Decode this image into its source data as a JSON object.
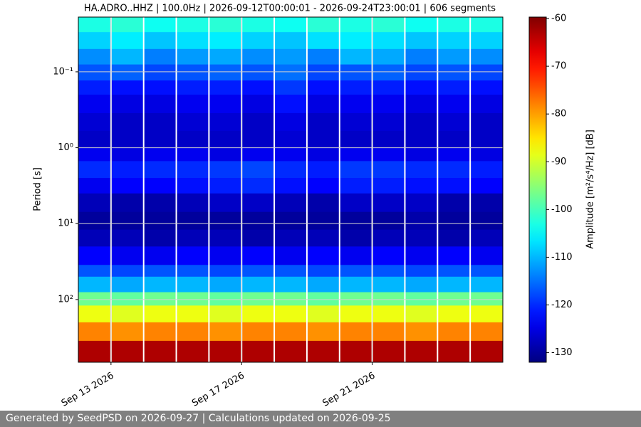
{
  "chart_data": {
    "type": "spectrogram",
    "title": "HA.ADRO..HHZ | 100.0Hz | 2026-09-12T00:00:01 - 2026-09-24T23:00:01 | 606 segments",
    "y_label": "Period [s]",
    "colorbar_label": "Amplitude [m²/s⁴/Hz] [dB]",
    "footer": "Generated by SeedPSD on 2026-09-27 | Calculations updated on 2026-09-25",
    "colormap": "jet",
    "y_log": true,
    "y_inverted": true,
    "grid": true,
    "xlim": [
      "2026-09-12",
      "2026-09-25"
    ],
    "xticks": [
      {
        "value": "2026-09-13",
        "label": "Sep 13 2026"
      },
      {
        "value": "2026-09-17",
        "label": "Sep 17 2026"
      },
      {
        "value": "2026-09-21",
        "label": "Sep 21 2026"
      }
    ],
    "ylim": [
      0.019,
      670
    ],
    "yticks": [
      {
        "value": 0.1,
        "label": "10⁻¹"
      },
      {
        "value": 1,
        "label": "10⁰"
      },
      {
        "value": 10,
        "label": "10¹"
      },
      {
        "value": 100,
        "label": "10²"
      }
    ],
    "zlim": [
      -132,
      -59.7
    ],
    "zticks": [
      -60,
      -70,
      -80,
      -90,
      -100,
      -110,
      -120,
      -130
    ],
    "x": [
      "2026-09-12",
      "2026-09-13",
      "2026-09-14",
      "2026-09-15",
      "2026-09-16",
      "2026-09-17",
      "2026-09-18",
      "2026-09-19",
      "2026-09-20",
      "2026-09-21",
      "2026-09-22",
      "2026-09-23",
      "2026-09-24"
    ],
    "period_bins": [
      0.019,
      0.03,
      0.05,
      0.08,
      0.13,
      0.2,
      0.35,
      0.6,
      1,
      1.5,
      2.5,
      4,
      7,
      12,
      20,
      35,
      50,
      80,
      120,
      200,
      350,
      670
    ],
    "values": [
      [
        -103,
        -102,
        -104,
        -103,
        -102,
        -103,
        -104,
        -102,
        -103,
        -102,
        -104,
        -103,
        -103
      ],
      [
        -108,
        -106,
        -109,
        -107,
        -106,
        -108,
        -109,
        -107,
        -106,
        -107,
        -109,
        -108,
        -108
      ],
      [
        -113,
        -110,
        -114,
        -112,
        -111,
        -113,
        -112,
        -114,
        -110,
        -111,
        -114,
        -112,
        -113
      ],
      [
        -117,
        -116,
        -118,
        -117,
        -116,
        -117,
        -115,
        -118,
        -117,
        -116,
        -118,
        -117,
        -118
      ],
      [
        -121,
        -122,
        -122,
        -121,
        -121,
        -122,
        -119,
        -122,
        -121,
        -121,
        -122,
        -121,
        -122
      ],
      [
        -124,
        -125,
        -125,
        -124,
        -124,
        -125,
        -122,
        -125,
        -124,
        -124,
        -125,
        -124,
        -125
      ],
      [
        -126,
        -127,
        -127,
        -126,
        -126,
        -127,
        -125,
        -127,
        -126,
        -126,
        -127,
        -126,
        -127
      ],
      [
        -127,
        -127,
        -127,
        -127,
        -127,
        -127,
        -126,
        -127,
        -127,
        -127,
        -127,
        -127,
        -127
      ],
      [
        -124,
        -125,
        -124,
        -124,
        -125,
        -124,
        -124,
        -125,
        -124,
        -124,
        -125,
        -124,
        -125
      ],
      [
        -120,
        -121,
        -120,
        -120,
        -119,
        -118,
        -120,
        -121,
        -119,
        -119,
        -120,
        -120,
        -121
      ],
      [
        -124,
        -123,
        -123,
        -122,
        -121,
        -120,
        -122,
        -123,
        -121,
        -121,
        -122,
        -122,
        -123
      ],
      [
        -128,
        -129,
        -129,
        -128,
        -127,
        -127,
        -128,
        -129,
        -127,
        -127,
        -127,
        -129,
        -129
      ],
      [
        -130,
        -130,
        -130,
        -130,
        -130,
        -130,
        -130,
        -130,
        -130,
        -130,
        -129,
        -130,
        -130
      ],
      [
        -128,
        -128,
        -129,
        -128,
        -128,
        -129,
        -128,
        -128,
        -129,
        -128,
        -128,
        -129,
        -128
      ],
      [
        -123,
        -124,
        -124,
        -123,
        -124,
        -123,
        -124,
        -123,
        -124,
        -123,
        -124,
        -123,
        -124
      ],
      [
        -117,
        -118,
        -117,
        -117,
        -118,
        -117,
        -117,
        -118,
        -117,
        -117,
        -118,
        -117,
        -117
      ],
      [
        -110,
        -111,
        -110,
        -110,
        -111,
        -110,
        -110,
        -111,
        -110,
        -110,
        -111,
        -110,
        -110
      ],
      [
        -97,
        -98,
        -97,
        -97,
        -98,
        -97,
        -97,
        -98,
        -97,
        -97,
        -98,
        -97,
        -97
      ],
      [
        -88,
        -89,
        -88,
        -88,
        -89,
        -88,
        -88,
        -89,
        -88,
        -88,
        -89,
        -88,
        -88
      ],
      [
        -78,
        -79,
        -78,
        -78,
        -79,
        -78,
        -78,
        -79,
        -78,
        -78,
        -79,
        -78,
        -78
      ],
      [
        -63,
        -63,
        -63,
        -63,
        -63,
        -63,
        -63,
        -63,
        -63,
        -63,
        -63,
        -63,
        -63
      ]
    ]
  }
}
